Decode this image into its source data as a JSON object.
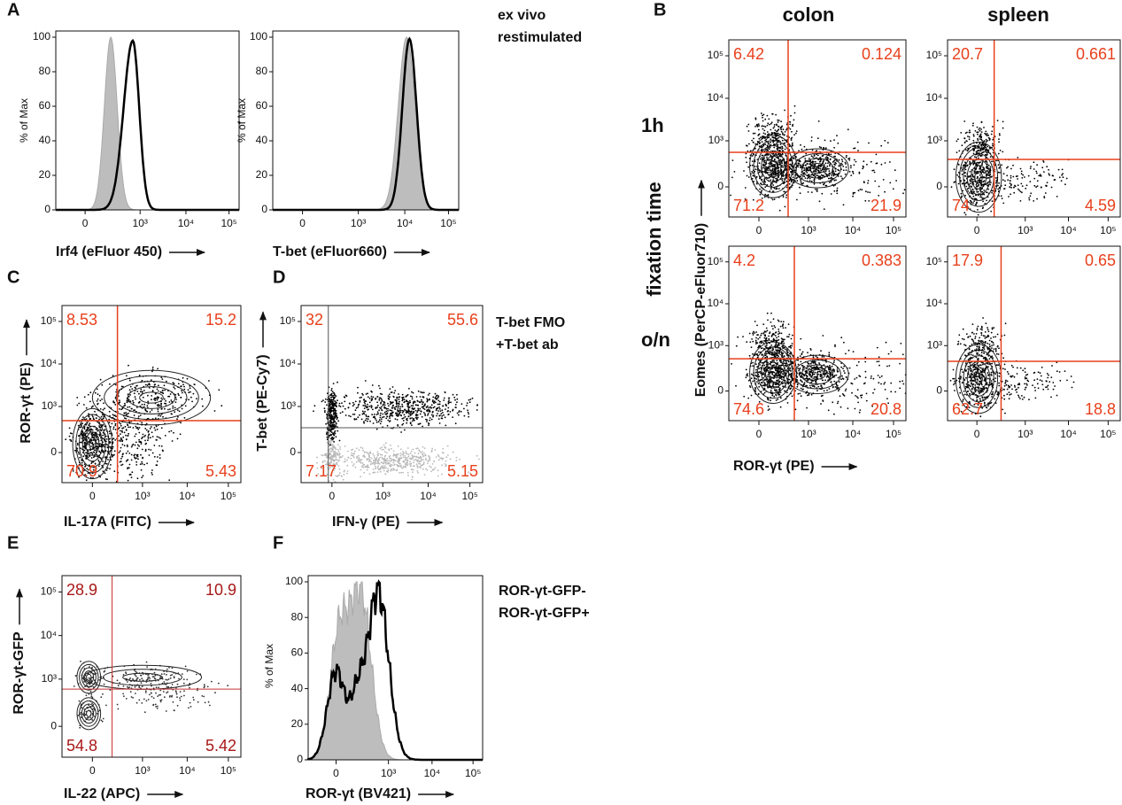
{
  "panel_a": {
    "letter": "A",
    "legend": [
      "ex vivo",
      "restimulated"
    ],
    "plots": [
      {
        "y_label": "% of Max",
        "x_label": "Irf4 (eFluor 450)",
        "yticks": [
          0,
          20,
          40,
          60,
          80,
          100
        ],
        "xticks": [
          "0",
          "10³",
          "10⁴",
          "10⁵"
        ]
      },
      {
        "y_label": "% of Max",
        "x_label": "T-bet (eFluor660)",
        "yticks": [
          0,
          20,
          40,
          60,
          80,
          100
        ],
        "xticks": [
          "0",
          "10³",
          "10⁴",
          "10⁵"
        ]
      }
    ]
  },
  "panel_b": {
    "letter": "B",
    "columns": [
      "colon",
      "spleen"
    ],
    "rows": [
      "1h",
      "o/n"
    ],
    "row_title": "fixation time",
    "y_label": "Eomes (PerCP-eFluor710)",
    "x_label": "ROR-γt (PE)",
    "plots": [
      {
        "quadrants": {
          "top_left": 6.42,
          "top_right": 0.124,
          "bottom_left": 71.2,
          "bottom_right": 21.9
        },
        "yticks": [
          "0",
          "10³",
          "10⁴",
          "10⁵"
        ],
        "xticks": [
          "0",
          "10³",
          "10⁴",
          "10⁵"
        ]
      },
      {
        "quadrants": {
          "top_left": 20.7,
          "top_right": 0.661,
          "bottom_left": 74,
          "bottom_right": 4.59
        },
        "yticks": [
          "0",
          "10³",
          "10⁴",
          "10⁵"
        ],
        "xticks": [
          "0",
          "10³",
          "10⁴",
          "10⁵"
        ]
      },
      {
        "quadrants": {
          "top_left": 4.2,
          "top_right": 0.383,
          "bottom_left": 74.6,
          "bottom_right": 20.8
        },
        "yticks": [
          "0",
          "10³",
          "10⁴",
          "10⁵"
        ],
        "xticks": [
          "0",
          "10³",
          "10⁴",
          "10⁵"
        ]
      },
      {
        "quadrants": {
          "top_left": 17.9,
          "top_right": 0.65,
          "bottom_left": 62.7,
          "bottom_right": 18.8
        },
        "yticks": [
          "0",
          "10³",
          "10⁴",
          "10⁵"
        ],
        "xticks": [
          "0",
          "10³",
          "10⁴",
          "10⁵"
        ]
      }
    ]
  },
  "panel_c": {
    "letter": "C",
    "y_label": "ROR-γt (PE)",
    "x_label": "IL-17A (FITC)",
    "quadrants": {
      "top_left": 8.53,
      "top_right": 15.2,
      "bottom_left": 70.9,
      "bottom_right": 5.43
    },
    "yticks": [
      "0",
      "10³",
      "10⁴",
      "10⁵"
    ],
    "xticks": [
      "0",
      "10³",
      "10⁴",
      "10⁵"
    ]
  },
  "panel_d": {
    "letter": "D",
    "y_label": "T-bet (PE-Cy7)",
    "x_label": "IFN-γ (PE)",
    "legend": [
      "T-bet FMO",
      "+T-bet ab"
    ],
    "quadrants": {
      "top_left": 32,
      "top_right": 55.6,
      "bottom_left": 7.17,
      "bottom_right": 5.15
    },
    "yticks": [
      "0",
      "10³",
      "10⁴",
      "10⁵"
    ],
    "xticks": [
      "0",
      "10³",
      "10⁴",
      "10⁵"
    ]
  },
  "panel_e": {
    "letter": "E",
    "y_label": "ROR-γt-GFP",
    "x_label": "IL-22 (APC)",
    "quadrants": {
      "top_left": 28.9,
      "top_right": 10.9,
      "bottom_left": 54.8,
      "bottom_right": 5.42
    },
    "yticks": [
      "0",
      "10³",
      "10⁴",
      "10⁵"
    ],
    "xticks": [
      "0",
      "10³",
      "10⁴",
      "10⁵"
    ]
  },
  "panel_f": {
    "letter": "F",
    "y_label": "% of Max",
    "x_label": "ROR-γt (BV421)",
    "legend": [
      "ROR-γt-GFP-",
      "ROR-γt-GFP+"
    ],
    "yticks": [
      0,
      20,
      40,
      60,
      80,
      100
    ],
    "xticks": [
      "0",
      "10³",
      "10⁴",
      "10⁵"
    ]
  }
}
